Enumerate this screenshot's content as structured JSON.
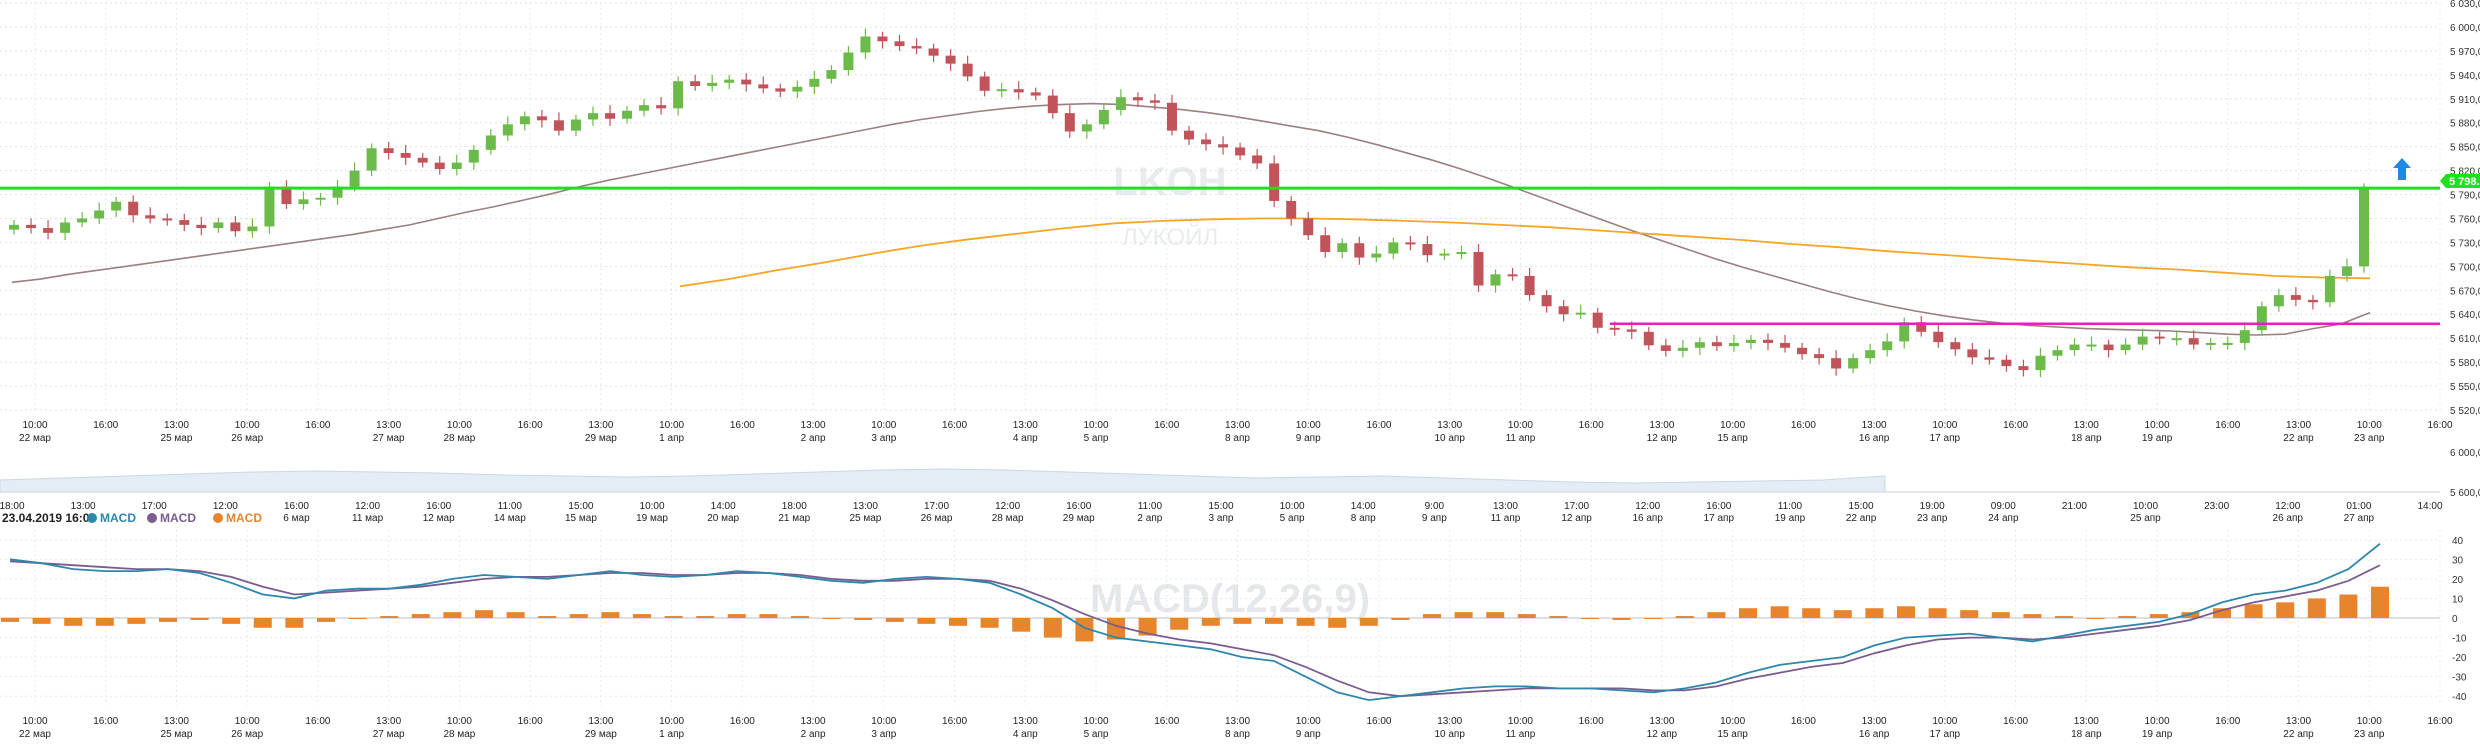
{
  "chart_data": [
    {
      "type": "candlestick",
      "title": "",
      "watermark": "LKOH",
      "watermark_sub": "ЛУКОЙЛ",
      "ylim": [
        5520,
        6030
      ],
      "y_ticks": [
        5520,
        5550,
        5580,
        5610,
        5640,
        5670,
        5700,
        5730,
        5760,
        5790,
        5820,
        5850,
        5880,
        5910,
        5940,
        5970,
        6000,
        6030
      ],
      "x_ticks": [
        {
          "time": "10:00",
          "date": "22 мар"
        },
        {
          "time": "16:00",
          "date": ""
        },
        {
          "time": "13:00",
          "date": "25 мар"
        },
        {
          "time": "10:00",
          "date": "26 мар"
        },
        {
          "time": "16:00",
          "date": ""
        },
        {
          "time": "13:00",
          "date": "27 мар"
        },
        {
          "time": "10:00",
          "date": "28 мар"
        },
        {
          "time": "16:00",
          "date": ""
        },
        {
          "time": "13:00",
          "date": "29 мар"
        },
        {
          "time": "10:00",
          "date": "1 апр"
        },
        {
          "time": "16:00",
          "date": ""
        },
        {
          "time": "13:00",
          "date": "2 апр"
        },
        {
          "time": "10:00",
          "date": "3 апр"
        },
        {
          "time": "16:00",
          "date": ""
        },
        {
          "time": "13:00",
          "date": "4 апр"
        },
        {
          "time": "10:00",
          "date": "5 апр"
        },
        {
          "time": "16:00",
          "date": ""
        },
        {
          "time": "13:00",
          "date": "8 апр"
        },
        {
          "time": "10:00",
          "date": "9 апр"
        },
        {
          "time": "16:00",
          "date": ""
        },
        {
          "time": "13:00",
          "date": "10 апр"
        },
        {
          "time": "10:00",
          "date": "11 апр"
        },
        {
          "time": "16:00",
          "date": ""
        },
        {
          "time": "13:00",
          "date": "12 апр"
        },
        {
          "time": "10:00",
          "date": "15 апр"
        },
        {
          "time": "16:00",
          "date": ""
        },
        {
          "time": "13:00",
          "date": "16 апр"
        },
        {
          "time": "10:00",
          "date": "17 апр"
        },
        {
          "time": "16:00",
          "date": ""
        },
        {
          "time": "13:00",
          "date": "18 апр"
        },
        {
          "time": "10:00",
          "date": "19 апр"
        },
        {
          "time": "16:00",
          "date": ""
        },
        {
          "time": "13:00",
          "date": "22 апр"
        },
        {
          "time": "10:00",
          "date": "23 апр"
        },
        {
          "time": "16:00",
          "date": ""
        }
      ],
      "candles_close": [
        5752,
        5748,
        5742,
        5755,
        5760,
        5770,
        5781,
        5764,
        5760,
        5758,
        5752,
        5748,
        5755,
        5744,
        5750,
        5800,
        5778,
        5784,
        5786,
        5800,
        5820,
        5848,
        5842,
        5836,
        5830,
        5822,
        5830,
        5846,
        5864,
        5878,
        5888,
        5883,
        5870,
        5884,
        5892,
        5885,
        5895,
        5902,
        5898,
        5932,
        5926,
        5930,
        5934,
        5928,
        5923,
        5919,
        5925,
        5935,
        5946,
        5968,
        5988,
        5982,
        5976,
        5973,
        5964,
        5954,
        5938,
        5920,
        5922,
        5918,
        5914,
        5892,
        5869,
        5878,
        5896,
        5912,
        5908,
        5905,
        5870,
        5859,
        5853,
        5849,
        5839,
        5829,
        5782,
        5760,
        5739,
        5718,
        5729,
        5711,
        5716,
        5730,
        5728,
        5714,
        5716,
        5718,
        5676,
        5690,
        5688,
        5664,
        5650,
        5640,
        5642,
        5623,
        5621,
        5618,
        5601,
        5594,
        5598,
        5605,
        5600,
        5604,
        5608,
        5604,
        5598,
        5590,
        5585,
        5572,
        5585,
        5595,
        5606,
        5630,
        5618,
        5605,
        5596,
        5586,
        5583,
        5575,
        5570,
        5588,
        5595,
        5602,
        5602,
        5595,
        5602,
        5612,
        5610,
        5610,
        5602,
        5604,
        5604,
        5620,
        5650,
        5664,
        5658,
        5655,
        5688,
        5700,
        5798
      ],
      "ma_short": [
        5680,
        5684,
        5690,
        5695,
        5700,
        5705,
        5710,
        5715,
        5720,
        5725,
        5730,
        5735,
        5740,
        5746,
        5752,
        5760,
        5768,
        5775,
        5783,
        5791,
        5800,
        5808,
        5815,
        5822,
        5829,
        5836,
        5843,
        5850,
        5857,
        5864,
        5871,
        5878,
        5884,
        5889,
        5894,
        5898,
        5901,
        5903,
        5904,
        5903,
        5900,
        5897,
        5893,
        5888,
        5882,
        5876,
        5870,
        5862,
        5853,
        5843,
        5833,
        5822,
        5810,
        5797,
        5784,
        5771,
        5758,
        5745,
        5733,
        5721,
        5709,
        5698,
        5688,
        5678,
        5668,
        5659,
        5651,
        5644,
        5638,
        5633,
        5629,
        5626,
        5624,
        5622,
        5621,
        5620,
        5619,
        5617,
        5615,
        5614,
        5615,
        5622,
        5628,
        5642
      ],
      "ma_long": [
        5675,
        5684,
        5695,
        5705,
        5716,
        5726,
        5734,
        5741,
        5748,
        5754,
        5757,
        5759,
        5760,
        5760,
        5759,
        5757,
        5755,
        5752,
        5749,
        5745,
        5741,
        5737,
        5733,
        5728,
        5724,
        5719,
        5715,
        5711,
        5707,
        5703,
        5699,
        5696,
        5692,
        5688,
        5686,
        5685
      ],
      "lines": [
        {
          "name": "green level",
          "value": 5798,
          "color": "#22dd22"
        },
        {
          "name": "magenta level",
          "value": 5628,
          "color": "#e020c0"
        }
      ],
      "last_price": "5 798.6"
    },
    {
      "type": "area",
      "title": "",
      "ylim": [
        5600,
        6000
      ],
      "y_ticks": [
        5600,
        6000
      ],
      "x_ticks": [
        {
          "time": "18:00",
          "date": ""
        },
        {
          "time": "13:00",
          "date": ""
        },
        {
          "time": "17:00",
          "date": ""
        },
        {
          "time": "12:00",
          "date": ""
        },
        {
          "time": "16:00",
          "date": "6 мар"
        },
        {
          "time": "12:00",
          "date": "11 мар"
        },
        {
          "time": "16:00",
          "date": "12 мар"
        },
        {
          "time": "11:00",
          "date": "14 мар"
        },
        {
          "time": "15:00",
          "date": "15 мар"
        },
        {
          "time": "10:00",
          "date": "19 мар"
        },
        {
          "time": "14:00",
          "date": "20 мар"
        },
        {
          "time": "18:00",
          "date": "21 мар"
        },
        {
          "time": "13:00",
          "date": "25 мар"
        },
        {
          "time": "17:00",
          "date": "26 мар"
        },
        {
          "time": "12:00",
          "date": "28 мар"
        },
        {
          "time": "16:00",
          "date": "29 мар"
        },
        {
          "time": "11:00",
          "date": "2 апр"
        },
        {
          "time": "15:00",
          "date": "3 апр"
        },
        {
          "time": "10:00",
          "date": "5 апр"
        },
        {
          "time": "14:00",
          "date": "8 апр"
        },
        {
          "time": "9:00",
          "date": "9 апр"
        },
        {
          "time": "13:00",
          "date": "11 апр"
        },
        {
          "time": "17:00",
          "date": "12 апр"
        },
        {
          "time": "12:00",
          "date": "16 апр"
        },
        {
          "time": "16:00",
          "date": "17 апр"
        },
        {
          "time": "11:00",
          "date": "19 апр"
        },
        {
          "time": "15:00",
          "date": "22 апр"
        },
        {
          "time": "19:00",
          "date": "23 апр"
        },
        {
          "time": "09:00",
          "date": "24 апр"
        },
        {
          "time": "21:00",
          "date": ""
        },
        {
          "time": "10:00",
          "date": "25 апр"
        },
        {
          "time": "23:00",
          "date": ""
        },
        {
          "time": "12:00",
          "date": "26 апр"
        },
        {
          "time": "01:00",
          "date": "27 апр"
        },
        {
          "time": "14:00",
          "date": ""
        }
      ],
      "values": [
        5720,
        5740,
        5760,
        5780,
        5800,
        5810,
        5800,
        5790,
        5770,
        5760,
        5750,
        5760,
        5780,
        5800,
        5820,
        5830,
        5820,
        5800,
        5780,
        5760,
        5740,
        5750,
        5760,
        5740,
        5720,
        5700,
        5690,
        5700,
        5710,
        5720,
        5760
      ]
    },
    {
      "type": "macd",
      "title": "MACD(12,26,9)",
      "legend": [
        "23.04.2019 16:00",
        "MACD",
        "MACD",
        "MACD"
      ],
      "legend_colors": [
        "#2e86ab",
        "#2e86ab",
        "#7a5c8e",
        "#e8842c"
      ],
      "ylim": [
        -45,
        45
      ],
      "y_ticks": [
        -40,
        -30,
        -20,
        -10,
        0,
        10,
        20,
        30,
        40
      ],
      "macd": [
        30,
        28,
        25,
        24,
        24,
        25,
        23,
        18,
        12,
        10,
        14,
        15,
        15,
        17,
        20,
        22,
        21,
        20,
        22,
        24,
        22,
        21,
        22,
        24,
        23,
        21,
        19,
        18,
        20,
        21,
        20,
        18,
        12,
        5,
        -5,
        -10,
        -12,
        -14,
        -16,
        -20,
        -22,
        -30,
        -38,
        -42,
        -40,
        -38,
        -36,
        -35,
        -35,
        -36,
        -36,
        -37,
        -38,
        -36,
        -33,
        -28,
        -24,
        -22,
        -20,
        -14,
        -10,
        -9,
        -8,
        -10,
        -12,
        -9,
        -6,
        -4,
        -2,
        2,
        8,
        12,
        14,
        18,
        25,
        38
      ],
      "signal": [
        29,
        28,
        27,
        26,
        25,
        25,
        24,
        21,
        16,
        12,
        13,
        14,
        15,
        16,
        18,
        20,
        21,
        21,
        22,
        23,
        23,
        22,
        22,
        23,
        23,
        22,
        20,
        19,
        19,
        20,
        20,
        19,
        15,
        9,
        2,
        -4,
        -8,
        -11,
        -13,
        -16,
        -19,
        -25,
        -32,
        -38,
        -40,
        -39,
        -38,
        -37,
        -36,
        -36,
        -36,
        -36,
        -37,
        -37,
        -35,
        -31,
        -28,
        -25,
        -23,
        -18,
        -14,
        -11,
        -10,
        -10,
        -11,
        -10,
        -8,
        -6,
        -4,
        -1,
        4,
        8,
        11,
        14,
        19,
        27
      ],
      "histogram": [
        -2,
        -3,
        -4,
        -4,
        -3,
        -2,
        -1,
        -3,
        -5,
        -5,
        -2,
        0,
        1,
        2,
        3,
        4,
        3,
        1,
        2,
        3,
        2,
        1,
        1,
        2,
        2,
        1,
        0,
        -1,
        -2,
        -3,
        -4,
        -5,
        -7,
        -10,
        -12,
        -11,
        -9,
        -6,
        -4,
        -3,
        -3,
        -4,
        -5,
        -4,
        -1,
        2,
        3,
        3,
        2,
        1,
        0,
        -1,
        0,
        1,
        3,
        5,
        6,
        5,
        4,
        5,
        6,
        5,
        4,
        3,
        2,
        1,
        0,
        1,
        2,
        3,
        5,
        7,
        8,
        10,
        12,
        16
      ]
    }
  ]
}
